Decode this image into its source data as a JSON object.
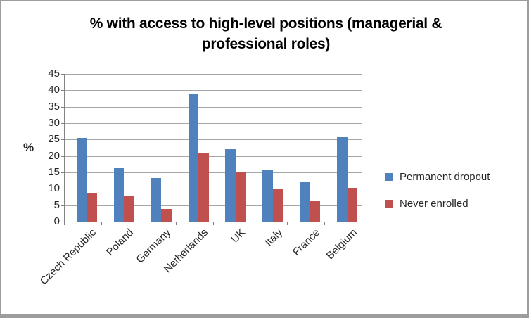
{
  "chart_data": {
    "type": "bar",
    "title": "% with access to high-level positions (managerial & professional roles)",
    "ylabel": "%",
    "categories": [
      "Czech Republic",
      "Poland",
      "Germany",
      "Netherlands",
      "UK",
      "Italy",
      "France",
      "Belgium"
    ],
    "series": [
      {
        "name": "Permanent dropout",
        "color": "#4F81BD",
        "values": [
          25.6,
          16.2,
          13.4,
          39.0,
          22.0,
          15.8,
          12.1,
          25.7
        ]
      },
      {
        "name": "Never enrolled",
        "color": "#C0504D",
        "values": [
          8.7,
          8.0,
          3.8,
          21.1,
          15.0,
          9.9,
          6.4,
          10.4
        ]
      }
    ],
    "ylim": [
      0,
      45
    ],
    "ytick_step": 5,
    "grid": "horizontal",
    "legend_position": "right"
  },
  "frame": {
    "background": "#FFFFFF",
    "border_color": "#9D9D9D",
    "gridline_color": "#A6A6A6",
    "axis_color": "#828282",
    "text_color": "#262626",
    "title_color": "#000000"
  }
}
